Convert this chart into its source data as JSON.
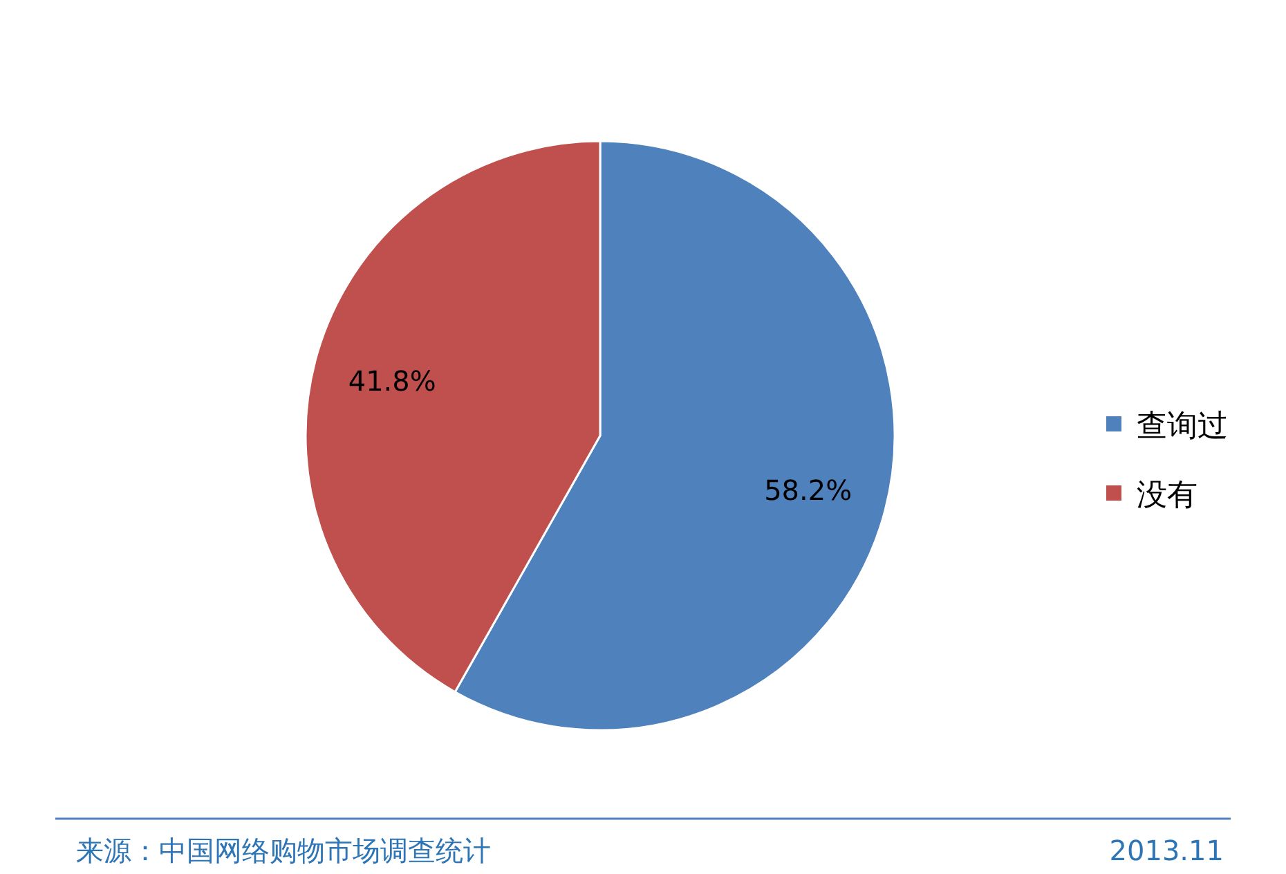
{
  "chart_data": {
    "type": "pie",
    "categories": [
      "查询过",
      "没有"
    ],
    "values": [
      58.2,
      41.8
    ],
    "colors": [
      "#4f81bd",
      "#c0504d"
    ],
    "value_labels": [
      "58.2%",
      "41.8%"
    ],
    "legend": "right",
    "annotations": [
      "来源：中国网络购物市场调查统计",
      "2013.11"
    ]
  }
}
